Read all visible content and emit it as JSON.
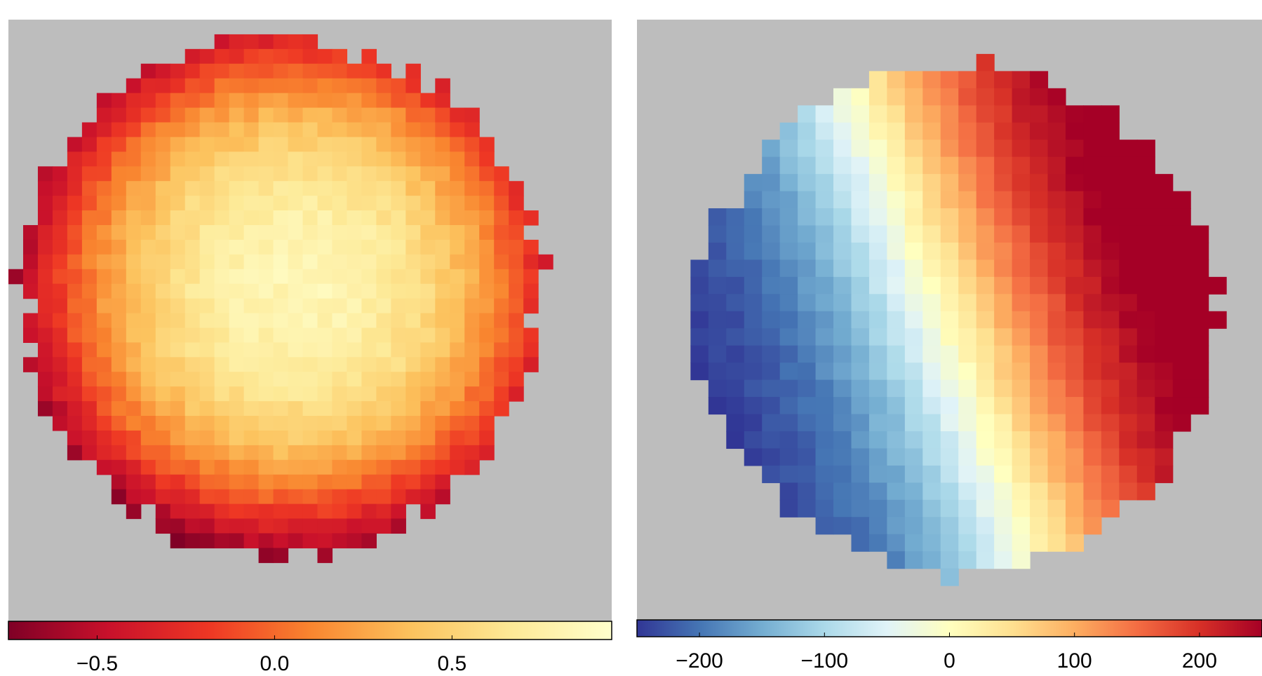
{
  "chart_data": [
    {
      "type": "heatmap",
      "title": "",
      "xlabel": "",
      "ylabel": "",
      "colormap": "YlOrRd (reversed), yellow-orange-red",
      "background_color": "#bdbdbd",
      "colorbar": {
        "range": [
          -0.75,
          0.95
        ],
        "placement": "bottom",
        "ticks": [
          -0.5,
          0.0,
          0.5
        ],
        "tick_labels": [
          "−0.5",
          "0.0",
          "0.5"
        ],
        "stops": [
          "#7f0026",
          "#c9112b",
          "#ee3724",
          "#f9852f",
          "#fcc25d",
          "#fde996",
          "#ffffcc"
        ]
      },
      "map": {
        "shape": "circle",
        "center": [
          -0.1,
          0.08
        ],
        "radius": 0.86,
        "description": "values high (~0.6-0.9) in center/upper-right, decreasing to ~-0.6 at lower-left rim"
      }
    },
    {
      "type": "heatmap",
      "title": "",
      "xlabel": "",
      "ylabel": "",
      "colormap": "RdYlBu (reversed), blue-yellow-red",
      "background_color": "#bdbdbd",
      "colorbar": {
        "range": [
          -250,
          250
        ],
        "placement": "bottom",
        "ticks": [
          -200,
          -100,
          0,
          100,
          200
        ],
        "tick_labels": [
          "−200",
          "−100",
          "0",
          "100",
          "200"
        ],
        "stops": [
          "#313695",
          "#4575b4",
          "#74add1",
          "#abd9e9",
          "#e0f3f8",
          "#ffffbf",
          "#fee090",
          "#fdae61",
          "#f46d43",
          "#d73027",
          "#a50026"
        ]
      },
      "map": {
        "shape": "circle",
        "description": "rotation field: approx -200 on the left edge, 0 along a tilted central band, approx +200 on the right edge"
      }
    }
  ]
}
